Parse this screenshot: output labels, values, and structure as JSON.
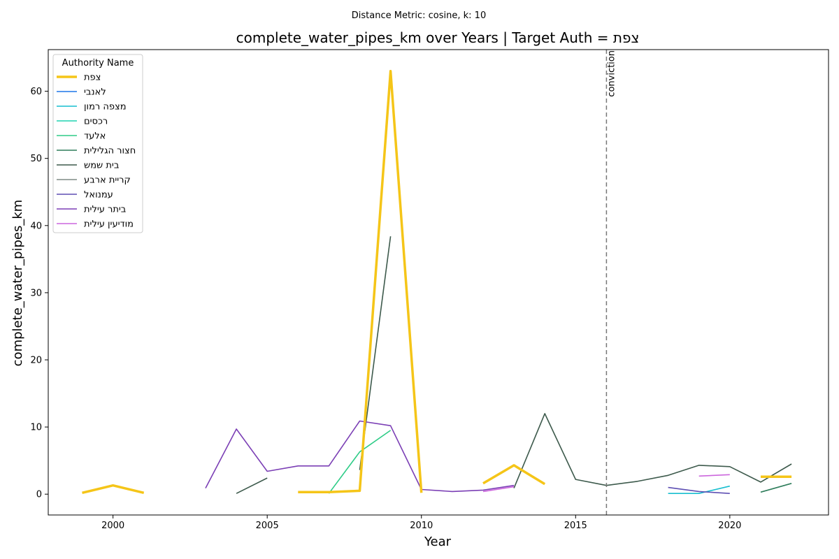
{
  "chart_data": {
    "type": "line",
    "subtitle": "Distance Metric: cosine, k: 10",
    "title": "complete_water_pipes_km over Years | Target Auth = צפת",
    "xlabel": "Year",
    "ylabel": "complete_water_pipes_km",
    "xlim": [
      1997.9,
      2023.2
    ],
    "ylim": [
      -3.1,
      66.2
    ],
    "x_ticks": [
      2000,
      2005,
      2010,
      2015,
      2020
    ],
    "y_ticks": [
      0,
      10,
      20,
      30,
      40,
      50,
      60
    ],
    "grid": false,
    "legend": {
      "title": "Authority Name",
      "placement": "top-left"
    },
    "annotations": [
      {
        "type": "vline",
        "x": 2016,
        "label": "conviction",
        "color": "#777777"
      }
    ],
    "series": [
      {
        "name": "צפת",
        "color": "#f5c518",
        "width": 3.5,
        "segments": [
          [
            [
              1999,
              0.2
            ],
            [
              2000,
              1.3
            ],
            [
              2001,
              0.2
            ]
          ],
          [
            [
              2006,
              0.3
            ],
            [
              2007,
              0.3
            ],
            [
              2008,
              0.5
            ],
            [
              2009,
              63.0
            ],
            [
              2010,
              0.2
            ]
          ],
          [
            [
              2012,
              1.6
            ],
            [
              2013,
              4.3
            ],
            [
              2014,
              1.5
            ]
          ],
          [
            [
              2021,
              2.6
            ],
            [
              2022,
              2.6
            ]
          ]
        ]
      },
      {
        "name": "לאנבי",
        "color": "#1f77e8",
        "width": 1.6,
        "segments": []
      },
      {
        "name": "מצפה רמון",
        "color": "#17becf",
        "width": 1.6,
        "segments": [
          [
            [
              2018,
              0.1
            ],
            [
              2019,
              0.1
            ],
            [
              2020,
              1.2
            ]
          ]
        ]
      },
      {
        "name": "רכסים",
        "color": "#1fd3b0",
        "width": 1.6,
        "segments": []
      },
      {
        "name": "אלעד",
        "color": "#2ecc87",
        "width": 1.6,
        "segments": [
          [
            [
              2007,
              0.1
            ],
            [
              2008,
              6.3
            ],
            [
              2009,
              9.5
            ]
          ]
        ]
      },
      {
        "name": "חצור הגלילית",
        "color": "#2e7d5b",
        "width": 1.6,
        "segments": [
          [
            [
              2021,
              0.3
            ],
            [
              2022,
              1.6
            ]
          ]
        ]
      },
      {
        "name": "בית שמש",
        "color": "#3d5a4c",
        "width": 1.6,
        "segments": [
          [
            [
              2004,
              0.1
            ],
            [
              2005,
              2.4
            ]
          ],
          [
            [
              2008,
              3.6
            ],
            [
              2009,
              38.4
            ]
          ],
          [
            [
              2013,
              0.9
            ],
            [
              2014,
              12.0
            ],
            [
              2015,
              2.2
            ],
            [
              2016,
              1.3
            ],
            [
              2017,
              1.9
            ],
            [
              2018,
              2.8
            ],
            [
              2019,
              4.3
            ],
            [
              2020,
              4.1
            ],
            [
              2021,
              1.8
            ],
            [
              2022,
              4.5
            ]
          ]
        ]
      },
      {
        "name": "קריית ארבע",
        "color": "#7f8c85",
        "width": 1.6,
        "segments": []
      },
      {
        "name": "עמנואל",
        "color": "#5e4fb3",
        "width": 1.6,
        "segments": [
          [
            [
              2018,
              1.0
            ],
            [
              2019,
              0.4
            ],
            [
              2020,
              0.1
            ]
          ]
        ]
      },
      {
        "name": "ביתר עילית",
        "color": "#7b3fb5",
        "width": 1.6,
        "segments": [
          [
            [
              2003,
              0.9
            ],
            [
              2004,
              9.7
            ],
            [
              2005,
              3.4
            ],
            [
              2006,
              4.2
            ],
            [
              2007,
              4.2
            ],
            [
              2008,
              10.9
            ],
            [
              2009,
              10.2
            ],
            [
              2010,
              0.7
            ],
            [
              2011,
              0.4
            ],
            [
              2012,
              0.6
            ],
            [
              2013,
              1.3
            ]
          ]
        ]
      },
      {
        "name": "מודיעין עילית",
        "color": "#cc66dd",
        "width": 1.6,
        "segments": [
          [
            [
              2012,
              0.4
            ],
            [
              2013,
              1.1
            ]
          ],
          [
            [
              2019,
              2.7
            ],
            [
              2020,
              2.9
            ]
          ]
        ]
      }
    ]
  }
}
